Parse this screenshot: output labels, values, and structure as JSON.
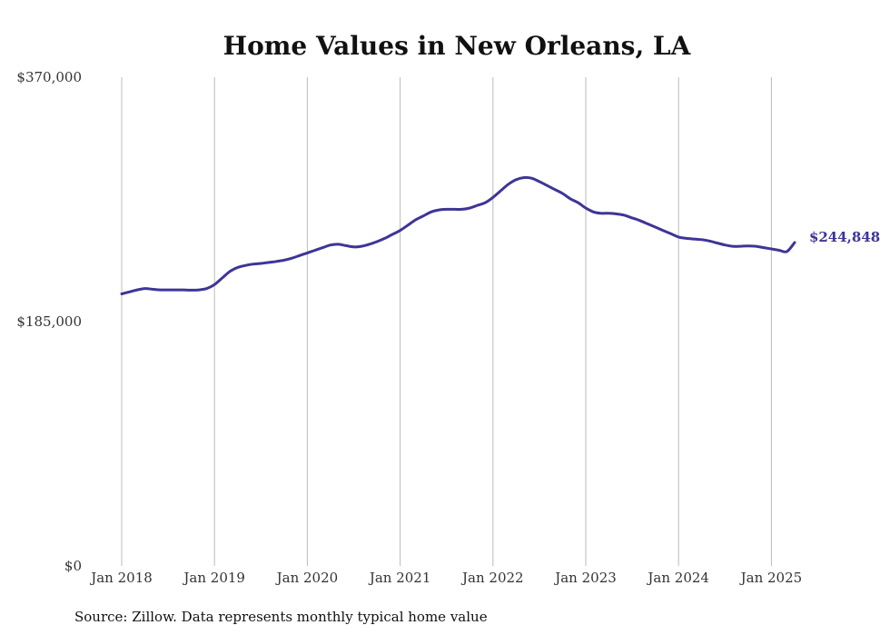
{
  "chart_data": {
    "type": "line",
    "title": "Home Values in New Orleans, LA",
    "source": "Source: Zillow. Data represents monthly typical home value",
    "ylim": [
      0,
      370000
    ],
    "y_ticks": [
      {
        "value": 0,
        "label": "$0"
      },
      {
        "value": 185000,
        "label": "$185,000"
      },
      {
        "value": 370000,
        "label": "$370,000"
      }
    ],
    "x_ticks": [
      {
        "value": "2018-01",
        "label": "Jan 2018"
      },
      {
        "value": "2019-01",
        "label": "Jan 2019"
      },
      {
        "value": "2020-01",
        "label": "Jan 2020"
      },
      {
        "value": "2021-01",
        "label": "Jan 2021"
      },
      {
        "value": "2022-01",
        "label": "Jan 2022"
      },
      {
        "value": "2023-01",
        "label": "Jan 2023"
      },
      {
        "value": "2024-01",
        "label": "Jan 2024"
      },
      {
        "value": "2025-01",
        "label": "Jan 2025"
      }
    ],
    "x_grid": true,
    "end_label": "$244,848",
    "line_color": "#3d3596",
    "series": [
      {
        "x": [
          "2018-01",
          "2018-02",
          "2018-03",
          "2018-04",
          "2018-05",
          "2018-06",
          "2018-07",
          "2018-08",
          "2018-09",
          "2018-10",
          "2018-11",
          "2018-12",
          "2019-01",
          "2019-02",
          "2019-03",
          "2019-04",
          "2019-05",
          "2019-06",
          "2019-07",
          "2019-08",
          "2019-09",
          "2019-10",
          "2019-11",
          "2019-12",
          "2020-01",
          "2020-02",
          "2020-03",
          "2020-04",
          "2020-05",
          "2020-06",
          "2020-07",
          "2020-08",
          "2020-09",
          "2020-10",
          "2020-11",
          "2020-12",
          "2021-01",
          "2021-02",
          "2021-03",
          "2021-04",
          "2021-05",
          "2021-06",
          "2021-07",
          "2021-08",
          "2021-09",
          "2021-10",
          "2021-11",
          "2021-12",
          "2022-01",
          "2022-02",
          "2022-03",
          "2022-04",
          "2022-05",
          "2022-06",
          "2022-07",
          "2022-08",
          "2022-09",
          "2022-10",
          "2022-11",
          "2022-12",
          "2023-01",
          "2023-02",
          "2023-03",
          "2023-04",
          "2023-05",
          "2023-06",
          "2023-07",
          "2023-08",
          "2023-09",
          "2023-10",
          "2023-11",
          "2023-12",
          "2024-01",
          "2024-02",
          "2024-03",
          "2024-04",
          "2024-05",
          "2024-06",
          "2024-07",
          "2024-08",
          "2024-09",
          "2024-10",
          "2024-11",
          "2024-12",
          "2025-01",
          "2025-02",
          "2025-03",
          "2025-04"
        ],
        "values": [
          206000,
          207500,
          209000,
          210000,
          209500,
          209000,
          209000,
          209000,
          209000,
          208800,
          209000,
          210000,
          213000,
          218000,
          223000,
          226000,
          227500,
          228500,
          229000,
          229800,
          230500,
          231500,
          233000,
          235000,
          237000,
          239000,
          241000,
          243000,
          243500,
          242500,
          241500,
          242000,
          243500,
          245500,
          248000,
          251000,
          254000,
          258000,
          262000,
          265000,
          268000,
          269500,
          270000,
          270000,
          270000,
          271000,
          273000,
          275000,
          279000,
          284000,
          289000,
          292500,
          294000,
          293500,
          291000,
          288000,
          285000,
          282000,
          278000,
          275000,
          271000,
          268000,
          267000,
          267000,
          266500,
          265500,
          263500,
          261500,
          259000,
          256500,
          254000,
          251500,
          249000,
          248000,
          247500,
          247000,
          246000,
          244500,
          243000,
          242000,
          242000,
          242300,
          242000,
          241000,
          240000,
          239000,
          238000,
          244848
        ]
      }
    ]
  }
}
